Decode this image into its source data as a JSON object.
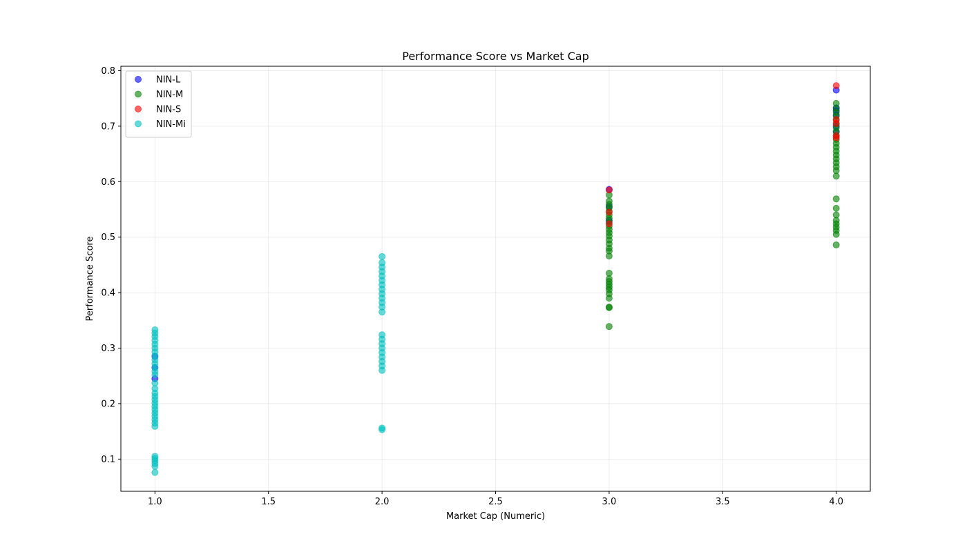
{
  "chart_data": {
    "type": "scatter",
    "title": "Performance Score vs Market Cap",
    "xlabel": "Market Cap (Numeric)",
    "ylabel": "Performance Score",
    "xlim": [
      0.85,
      4.15
    ],
    "ylim": [
      0.042,
      0.808
    ],
    "x_ticks": [
      1.0,
      1.5,
      2.0,
      2.5,
      3.0,
      3.5,
      4.0
    ],
    "x_tick_labels": [
      "1.0",
      "1.5",
      "2.0",
      "2.5",
      "3.0",
      "3.5",
      "4.0"
    ],
    "y_ticks": [
      0.1,
      0.2,
      0.3,
      0.4,
      0.5,
      0.6,
      0.7,
      0.8
    ],
    "y_tick_labels": [
      "0.1",
      "0.2",
      "0.3",
      "0.4",
      "0.5",
      "0.6",
      "0.7",
      "0.8"
    ],
    "grid": true,
    "legend_position": "top-left",
    "series": [
      {
        "name": "NIN-L",
        "color": "#0000ff",
        "points": [
          [
            1.0,
            0.245
          ],
          [
            1.0,
            0.265
          ],
          [
            1.0,
            0.285
          ],
          [
            3.0,
            0.586
          ],
          [
            3.0,
            0.555
          ],
          [
            3.0,
            0.53
          ],
          [
            4.0,
            0.765
          ],
          [
            4.0,
            0.733
          ],
          [
            4.0,
            0.728
          ],
          [
            4.0,
            0.72
          ],
          [
            4.0,
            0.7
          ],
          [
            4.0,
            0.69
          ]
        ]
      },
      {
        "name": "NIN-M",
        "color": "#008000",
        "points": [
          [
            3.0,
            0.339
          ],
          [
            3.0,
            0.373
          ],
          [
            3.0,
            0.374
          ],
          [
            3.0,
            0.39
          ],
          [
            3.0,
            0.398
          ],
          [
            3.0,
            0.405
          ],
          [
            3.0,
            0.41
          ],
          [
            3.0,
            0.415
          ],
          [
            3.0,
            0.42
          ],
          [
            3.0,
            0.425
          ],
          [
            3.0,
            0.435
          ],
          [
            3.0,
            0.466
          ],
          [
            3.0,
            0.475
          ],
          [
            3.0,
            0.48
          ],
          [
            3.0,
            0.488
          ],
          [
            3.0,
            0.495
          ],
          [
            3.0,
            0.502
          ],
          [
            3.0,
            0.508
          ],
          [
            3.0,
            0.514
          ],
          [
            3.0,
            0.52
          ],
          [
            3.0,
            0.527
          ],
          [
            3.0,
            0.534
          ],
          [
            3.0,
            0.54
          ],
          [
            3.0,
            0.547
          ],
          [
            3.0,
            0.553
          ],
          [
            3.0,
            0.559
          ],
          [
            3.0,
            0.565
          ],
          [
            3.0,
            0.576
          ],
          [
            4.0,
            0.486
          ],
          [
            4.0,
            0.505
          ],
          [
            4.0,
            0.512
          ],
          [
            4.0,
            0.518
          ],
          [
            4.0,
            0.524
          ],
          [
            4.0,
            0.53
          ],
          [
            4.0,
            0.54
          ],
          [
            4.0,
            0.552
          ],
          [
            4.0,
            0.569
          ],
          [
            4.0,
            0.61
          ],
          [
            4.0,
            0.62
          ],
          [
            4.0,
            0.627
          ],
          [
            4.0,
            0.634
          ],
          [
            4.0,
            0.641
          ],
          [
            4.0,
            0.648
          ],
          [
            4.0,
            0.655
          ],
          [
            4.0,
            0.662
          ],
          [
            4.0,
            0.669
          ],
          [
            4.0,
            0.676
          ],
          [
            4.0,
            0.683
          ],
          [
            4.0,
            0.69
          ],
          [
            4.0,
            0.697
          ],
          [
            4.0,
            0.704
          ],
          [
            4.0,
            0.711
          ],
          [
            4.0,
            0.718
          ],
          [
            4.0,
            0.725
          ],
          [
            4.0,
            0.732
          ],
          [
            4.0,
            0.741
          ]
        ]
      },
      {
        "name": "NIN-S",
        "color": "#ff0000",
        "points": [
          [
            3.0,
            0.585
          ],
          [
            3.0,
            0.545
          ],
          [
            3.0,
            0.524
          ],
          [
            4.0,
            0.773
          ],
          [
            4.0,
            0.712
          ],
          [
            4.0,
            0.705
          ],
          [
            4.0,
            0.683
          ],
          [
            4.0,
            0.679
          ]
        ]
      },
      {
        "name": "NIN-Mi",
        "color": "#00bfbf",
        "points": [
          [
            1.0,
            0.076
          ],
          [
            1.0,
            0.087
          ],
          [
            1.0,
            0.092
          ],
          [
            1.0,
            0.097
          ],
          [
            1.0,
            0.101
          ],
          [
            1.0,
            0.105
          ],
          [
            1.0,
            0.159
          ],
          [
            1.0,
            0.165
          ],
          [
            1.0,
            0.171
          ],
          [
            1.0,
            0.177
          ],
          [
            1.0,
            0.183
          ],
          [
            1.0,
            0.189
          ],
          [
            1.0,
            0.195
          ],
          [
            1.0,
            0.201
          ],
          [
            1.0,
            0.207
          ],
          [
            1.0,
            0.213
          ],
          [
            1.0,
            0.219
          ],
          [
            1.0,
            0.227
          ],
          [
            1.0,
            0.237
          ],
          [
            1.0,
            0.252
          ],
          [
            1.0,
            0.258
          ],
          [
            1.0,
            0.265
          ],
          [
            1.0,
            0.272
          ],
          [
            1.0,
            0.279
          ],
          [
            1.0,
            0.286
          ],
          [
            1.0,
            0.293
          ],
          [
            1.0,
            0.3
          ],
          [
            1.0,
            0.307
          ],
          [
            1.0,
            0.314
          ],
          [
            1.0,
            0.321
          ],
          [
            1.0,
            0.327
          ],
          [
            1.0,
            0.333
          ],
          [
            2.0,
            0.153
          ],
          [
            2.0,
            0.156
          ],
          [
            2.0,
            0.26
          ],
          [
            2.0,
            0.268
          ],
          [
            2.0,
            0.276
          ],
          [
            2.0,
            0.284
          ],
          [
            2.0,
            0.292
          ],
          [
            2.0,
            0.3
          ],
          [
            2.0,
            0.308
          ],
          [
            2.0,
            0.316
          ],
          [
            2.0,
            0.324
          ],
          [
            2.0,
            0.365
          ],
          [
            2.0,
            0.374
          ],
          [
            2.0,
            0.382
          ],
          [
            2.0,
            0.39
          ],
          [
            2.0,
            0.398
          ],
          [
            2.0,
            0.406
          ],
          [
            2.0,
            0.414
          ],
          [
            2.0,
            0.422
          ],
          [
            2.0,
            0.43
          ],
          [
            2.0,
            0.438
          ],
          [
            2.0,
            0.446
          ],
          [
            2.0,
            0.454
          ],
          [
            2.0,
            0.465
          ]
        ]
      }
    ]
  }
}
